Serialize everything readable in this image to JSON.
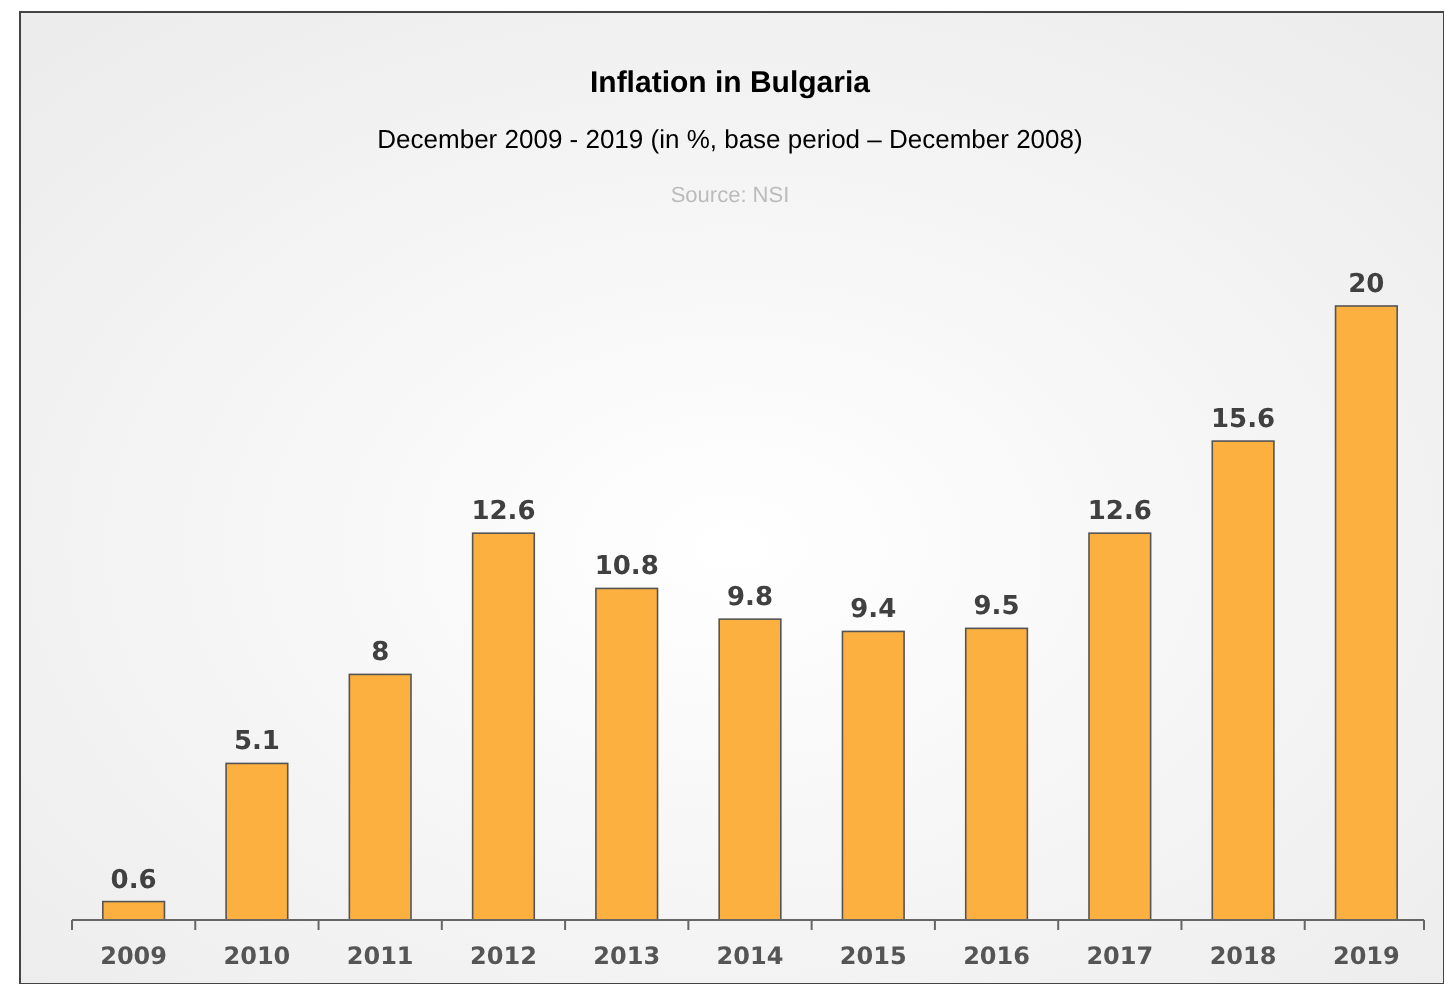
{
  "chart_data": {
    "type": "bar",
    "title": "Inflation in Bulgaria",
    "subtitle": "December 2009 - 2019  (in %, base period – December 2008)",
    "annotations": [
      "Source: NSI"
    ],
    "categories": [
      "2009",
      "2010",
      "2011",
      "2012",
      "2013",
      "2014",
      "2015",
      "2016",
      "2017",
      "2018",
      "2019"
    ],
    "values": [
      0.6,
      5.1,
      8,
      12.6,
      10.8,
      9.8,
      9.4,
      9.5,
      12.6,
      15.6,
      20
    ],
    "color": "#fbb040",
    "data_labels": true
  }
}
